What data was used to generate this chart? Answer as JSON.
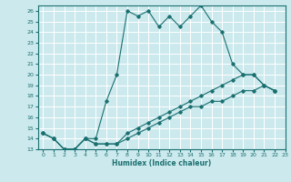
{
  "title": "",
  "xlabel": "Humidex (Indice chaleur)",
  "ylabel": "",
  "bg_color": "#cce9ed",
  "line_color": "#1a7070",
  "grid_color": "#ffffff",
  "xlim": [
    -0.5,
    23
  ],
  "ylim": [
    13,
    26.5
  ],
  "yticks": [
    13,
    14,
    15,
    16,
    17,
    18,
    19,
    20,
    21,
    22,
    23,
    24,
    25,
    26
  ],
  "xticks": [
    0,
    1,
    2,
    3,
    4,
    5,
    6,
    7,
    8,
    9,
    10,
    11,
    12,
    13,
    14,
    15,
    16,
    17,
    18,
    19,
    20,
    21,
    22,
    23
  ],
  "series1_x": [
    0,
    1,
    2,
    3,
    4,
    5,
    6,
    7,
    8,
    9,
    10,
    11,
    12,
    13,
    14,
    15,
    16,
    17,
    18,
    19,
    20,
    21,
    22
  ],
  "series1_y": [
    14.5,
    14.0,
    13.0,
    13.0,
    14.0,
    14.0,
    17.5,
    20.0,
    26.0,
    25.5,
    26.0,
    24.5,
    25.5,
    24.5,
    25.5,
    26.5,
    25.0,
    24.0,
    21.0,
    20.0,
    20.0,
    19.0,
    18.5
  ],
  "series2_x": [
    0,
    1,
    2,
    3,
    4,
    5,
    6,
    7,
    8,
    9,
    10,
    11,
    12,
    13,
    14,
    15,
    16,
    17,
    18,
    19,
    20,
    21,
    22
  ],
  "series2_y": [
    14.5,
    14.0,
    13.0,
    13.0,
    14.0,
    13.5,
    13.5,
    13.5,
    14.0,
    14.5,
    15.0,
    15.5,
    16.0,
    16.5,
    17.0,
    17.0,
    17.5,
    17.5,
    18.0,
    18.5,
    18.5,
    19.0,
    18.5
  ],
  "series3_x": [
    0,
    1,
    2,
    3,
    4,
    5,
    6,
    7,
    8,
    9,
    10,
    11,
    12,
    13,
    14,
    15,
    16,
    17,
    18,
    19,
    20,
    21,
    22
  ],
  "series3_y": [
    14.5,
    14.0,
    13.0,
    13.0,
    14.0,
    13.5,
    13.5,
    13.5,
    14.5,
    15.0,
    15.5,
    16.0,
    16.5,
    17.0,
    17.5,
    18.0,
    18.5,
    19.0,
    19.5,
    20.0,
    20.0,
    19.0,
    18.5
  ]
}
